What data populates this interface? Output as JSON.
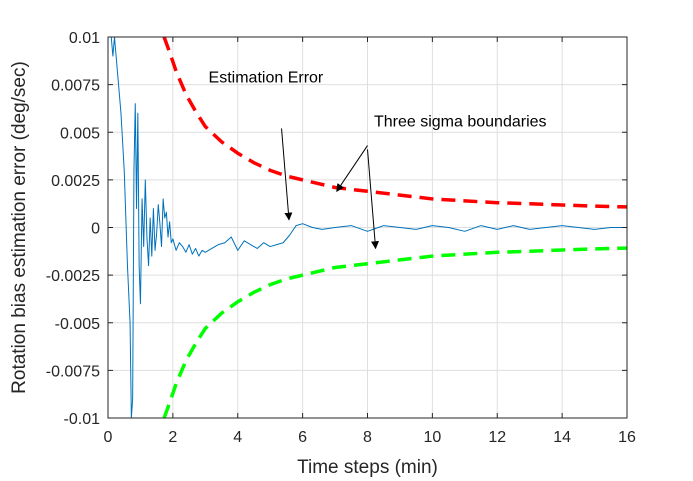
{
  "chart_data": {
    "type": "line",
    "xlabel": "Time steps (min)",
    "ylabel": "Rotation bias estimation error (deg/sec)",
    "xlim": [
      0,
      16
    ],
    "ylim": [
      -0.01,
      0.01
    ],
    "x_ticks": [
      0,
      2,
      4,
      6,
      8,
      10,
      12,
      14,
      16
    ],
    "y_ticks": [
      -0.01,
      -0.0075,
      -0.005,
      -0.0025,
      0,
      0.0025,
      0.005,
      0.0075,
      0.01
    ],
    "x_tick_labels": [
      "0",
      "2",
      "4",
      "6",
      "8",
      "10",
      "12",
      "14",
      "16"
    ],
    "y_tick_labels": [
      "-0.01",
      "-0.0075",
      "-0.005",
      "-0.0025",
      "0",
      "0.0025",
      "0.005",
      "0.0075",
      "0.01"
    ],
    "grid": true,
    "series": [
      {
        "role": "estimation-error",
        "color": "#0072BD",
        "style": "solid",
        "x": [
          0.1,
          0.15,
          0.2,
          0.3,
          0.4,
          0.5,
          0.6,
          0.68,
          0.72,
          0.76,
          0.8,
          0.84,
          0.88,
          0.92,
          0.96,
          1.0,
          1.05,
          1.1,
          1.15,
          1.2,
          1.25,
          1.3,
          1.35,
          1.4,
          1.45,
          1.5,
          1.55,
          1.6,
          1.65,
          1.7,
          1.75,
          1.8,
          1.85,
          1.9,
          1.95,
          2.0,
          2.1,
          2.2,
          2.3,
          2.4,
          2.5,
          2.6,
          2.7,
          2.8,
          2.9,
          3.0,
          3.2,
          3.4,
          3.6,
          3.8,
          4.0,
          4.2,
          4.4,
          4.6,
          4.8,
          5.0,
          5.2,
          5.4,
          5.6,
          5.8,
          6.0,
          6.3,
          6.6,
          7.0,
          7.5,
          8.0,
          8.5,
          9.0,
          9.5,
          10.0,
          10.5,
          11.0,
          11.5,
          12.0,
          12.5,
          13.0,
          13.5,
          14.0,
          14.5,
          15.0,
          15.5,
          16.0
        ],
        "y": [
          0.01,
          0.009,
          0.01,
          0.008,
          0.006,
          0.003,
          -0.002,
          -0.005,
          -0.01,
          -0.009,
          0.003,
          0.0065,
          0.001,
          0.006,
          -0.002,
          -0.004,
          0.0015,
          -0.001,
          0.0025,
          -0.0005,
          -0.002,
          0.0005,
          -0.0015,
          0.001,
          -0.0012,
          -0.0003,
          0.0012,
          0.0002,
          -0.001,
          0.0015,
          0.0005,
          0.0008,
          -0.0005,
          0.0003,
          -0.0008,
          -0.0006,
          -0.0012,
          -0.0008,
          -0.001,
          -0.0013,
          -0.0009,
          -0.0014,
          -0.0011,
          -0.0015,
          -0.0012,
          -0.0013,
          -0.0011,
          -0.0009,
          -0.0008,
          -0.0005,
          -0.0012,
          -0.0007,
          -0.0009,
          -0.0011,
          -0.0008,
          -0.001,
          -0.0009,
          -0.0008,
          -0.0004,
          0.0001,
          0.0002,
          0.0,
          -0.0001,
          0.0,
          0.0001,
          -0.0002,
          0.0001,
          0.0,
          -0.0001,
          0.0001,
          0.0,
          -0.0002,
          0.0001,
          -0.0001,
          0.0001,
          -0.0001,
          0.0,
          0.0001,
          0.0,
          -0.0001,
          0.0,
          0.0
        ]
      },
      {
        "role": "upper-three-sigma-boundary",
        "color": "#FF0000",
        "style": "dashed",
        "x": [
          1.73,
          1.9,
          2.1,
          2.4,
          2.7,
          3.0,
          3.5,
          4.0,
          4.5,
          5.0,
          5.5,
          6.0,
          6.5,
          7.0,
          8.0,
          9.0,
          10.0,
          11.0,
          12.0,
          13.0,
          14.0,
          15.0,
          16.0
        ],
        "y": [
          0.01,
          0.0092,
          0.0082,
          0.007,
          0.0061,
          0.0053,
          0.0045,
          0.0039,
          0.0034,
          0.003,
          0.0027,
          0.0025,
          0.0023,
          0.0021,
          0.0019,
          0.0017,
          0.0015,
          0.0014,
          0.0013,
          0.00125,
          0.00118,
          0.00112,
          0.00108
        ]
      },
      {
        "role": "lower-three-sigma-boundary",
        "color": "#00FF00",
        "style": "dashed",
        "x": [
          1.73,
          1.9,
          2.1,
          2.4,
          2.7,
          3.0,
          3.5,
          4.0,
          4.5,
          5.0,
          5.5,
          6.0,
          6.5,
          7.0,
          8.0,
          9.0,
          10.0,
          11.0,
          12.0,
          13.0,
          14.0,
          15.0,
          16.0
        ],
        "y": [
          -0.01,
          -0.0092,
          -0.0082,
          -0.007,
          -0.0061,
          -0.0053,
          -0.0045,
          -0.0039,
          -0.0034,
          -0.003,
          -0.0027,
          -0.0025,
          -0.0023,
          -0.0021,
          -0.0019,
          -0.0017,
          -0.0015,
          -0.0014,
          -0.0013,
          -0.00125,
          -0.00118,
          -0.00112,
          -0.00108
        ]
      }
    ],
    "annotations": [
      {
        "text": "Estimation Error",
        "text_x": 3.1,
        "text_y": 0.0076,
        "arrows": [
          {
            "from": [
              5.35,
              0.0052
            ],
            "to": [
              5.58,
              0.0004
            ]
          }
        ]
      },
      {
        "text": "Three sigma boundaries",
        "text_x": 8.2,
        "text_y": 0.0053,
        "arrows": [
          {
            "from": [
              8.0,
              0.0043
            ],
            "to": [
              7.05,
              0.0019
            ]
          },
          {
            "from": [
              8.0,
              0.0041
            ],
            "to": [
              8.25,
              -0.0011
            ]
          }
        ]
      }
    ]
  }
}
